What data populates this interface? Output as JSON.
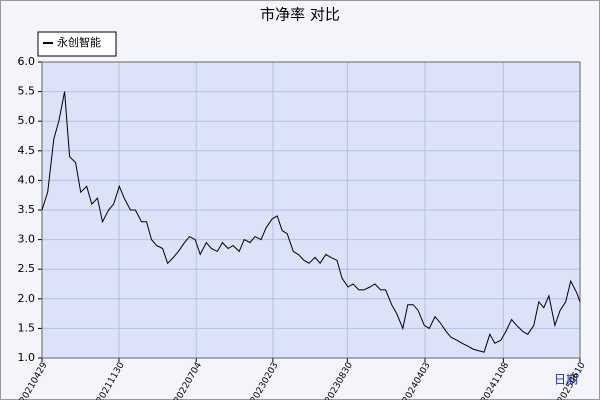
{
  "chart_data": {
    "type": "line",
    "title": "市净率  对比",
    "x_label": "日期",
    "x": [
      "20210429",
      "20210515",
      "20210601",
      "20210615",
      "20210701",
      "20210715",
      "20210801",
      "20210815",
      "20210901",
      "20210915",
      "20211001",
      "20211015",
      "20211101",
      "20211115",
      "20211201",
      "20211215",
      "20220101",
      "20220115",
      "20220201",
      "20220215",
      "20220301",
      "20220315",
      "20220401",
      "20220415",
      "20220501",
      "20220515",
      "20220601",
      "20220615",
      "20220701",
      "20220715",
      "20220801",
      "20220815",
      "20220901",
      "20220915",
      "20221001",
      "20221015",
      "20221101",
      "20221115",
      "20221201",
      "20221215",
      "20230101",
      "20230115",
      "20230201",
      "20230215",
      "20230301",
      "20230315",
      "20230401",
      "20230415",
      "20230501",
      "20230515",
      "20230601",
      "20230615",
      "20230701",
      "20230715",
      "20230801",
      "20230815",
      "20230901",
      "20230915",
      "20231001",
      "20231015",
      "20231101",
      "20231115",
      "20231201",
      "20231215",
      "20240101",
      "20240115",
      "20240201",
      "20240215",
      "20240301",
      "20240315",
      "20240401",
      "20240415",
      "20240501",
      "20240515",
      "20240601",
      "20240615",
      "20240701",
      "20240715",
      "20240801",
      "20240815",
      "20240901",
      "20240915",
      "20241001",
      "20241015",
      "20241101",
      "20241115",
      "20241201",
      "20241215",
      "20250101",
      "20250115",
      "20250201",
      "20250215",
      "20250301",
      "20250315",
      "20250401",
      "20250415",
      "20250501",
      "20250515",
      "20250601",
      "20250610"
    ],
    "series": [
      {
        "name": "永创智能",
        "color": "#000000",
        "values": [
          3.5,
          3.8,
          4.7,
          5.0,
          5.5,
          4.4,
          4.3,
          3.8,
          3.9,
          3.6,
          3.7,
          3.3,
          3.5,
          3.6,
          3.9,
          3.7,
          3.5,
          3.5,
          3.3,
          3.3,
          3.0,
          2.9,
          2.85,
          2.6,
          2.7,
          2.8,
          2.95,
          3.05,
          3.0,
          2.75,
          2.95,
          2.85,
          2.8,
          2.95,
          2.85,
          2.9,
          2.8,
          3.0,
          2.95,
          3.05,
          3.0,
          3.2,
          3.35,
          3.4,
          3.15,
          3.1,
          2.8,
          2.75,
          2.65,
          2.6,
          2.7,
          2.6,
          2.75,
          2.7,
          2.65,
          2.35,
          2.2,
          2.25,
          2.15,
          2.15,
          2.2,
          2.25,
          2.15,
          2.15,
          1.9,
          1.75,
          1.5,
          1.9,
          1.9,
          1.8,
          1.55,
          1.5,
          1.7,
          1.6,
          1.45,
          1.35,
          1.3,
          1.25,
          1.2,
          1.15,
          1.12,
          1.1,
          1.4,
          1.25,
          1.3,
          1.45,
          1.65,
          1.55,
          1.45,
          1.4,
          1.55,
          1.95,
          1.85,
          2.05,
          1.55,
          1.8,
          1.95,
          2.3,
          2.1,
          1.95
        ]
      }
    ],
    "xlim": [
      "20210429",
      "20250610"
    ],
    "xticks": [
      "20210429",
      "20211130",
      "20220704",
      "20230203",
      "20230830",
      "20240403",
      "20241108",
      "20250610"
    ],
    "ylim": [
      1.0,
      6.0
    ],
    "yticks": [
      {
        "value": 1.0,
        "label": "1.0"
      },
      {
        "value": 1.5,
        "label": "1.5"
      },
      {
        "value": 2.0,
        "label": "2.0"
      },
      {
        "value": 2.5,
        "label": "2.5"
      },
      {
        "value": 3.0,
        "label": "3.0"
      },
      {
        "value": 3.5,
        "label": "3.5"
      },
      {
        "value": 4.0,
        "label": "4.0"
      },
      {
        "value": 4.5,
        "label": "4.5"
      },
      {
        "value": 5.0,
        "label": "5.0"
      },
      {
        "value": 5.5,
        "label": "5.5"
      },
      {
        "value": 6.0,
        "label": "6.0"
      }
    ],
    "grid": true,
    "legend": "top-left"
  }
}
